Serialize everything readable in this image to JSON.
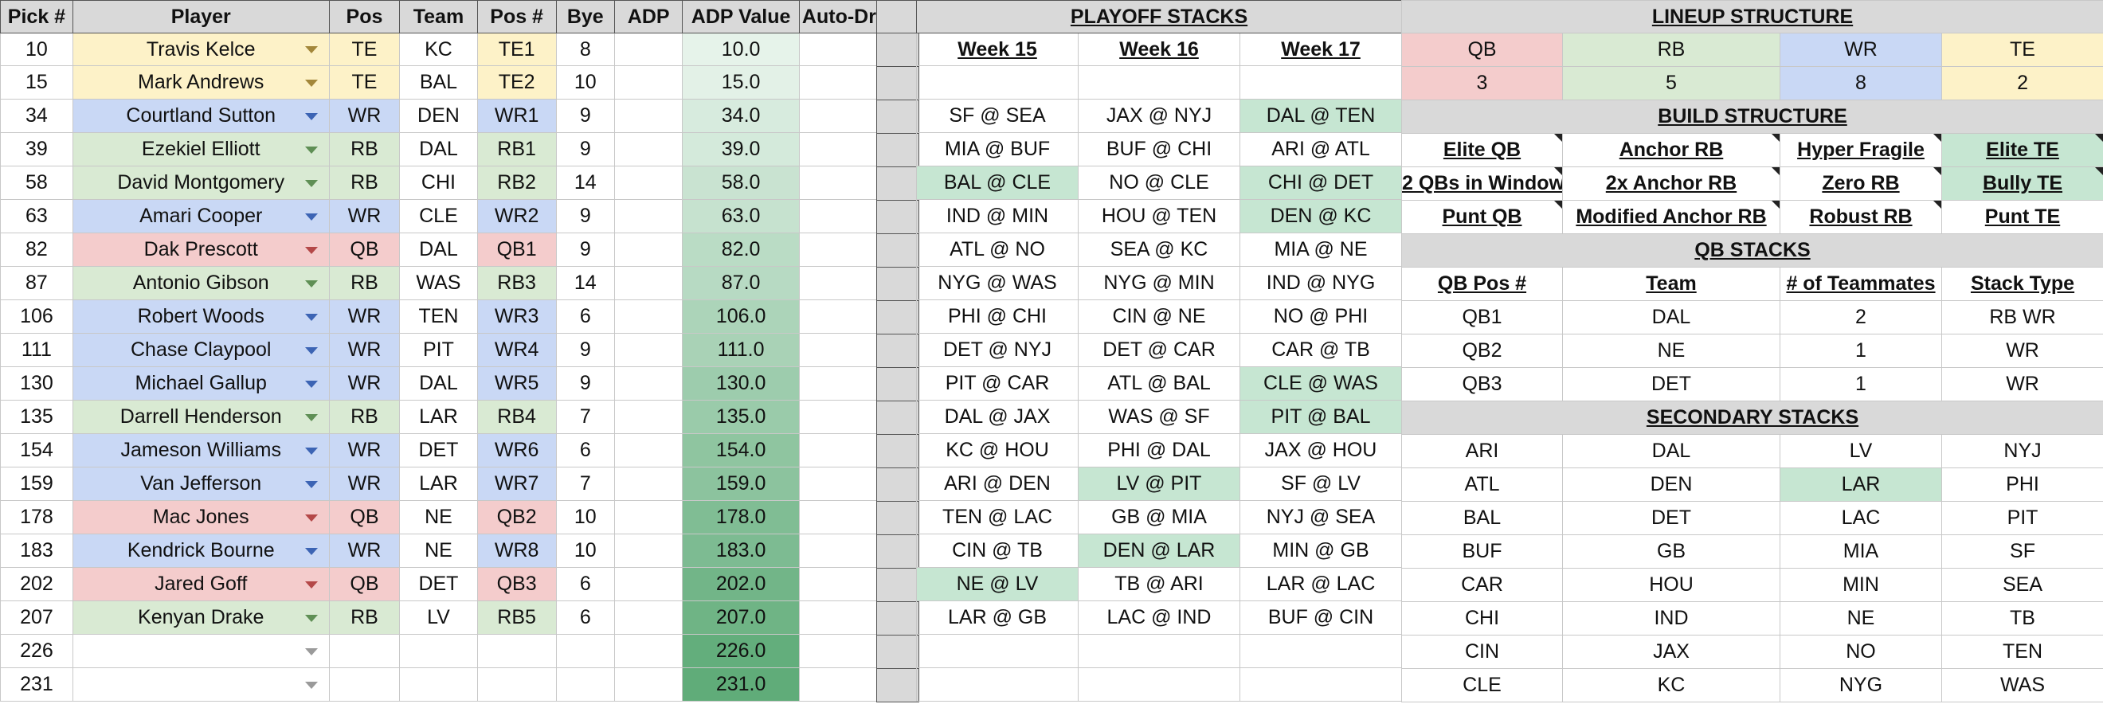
{
  "left_table": {
    "headers": [
      "Pick #",
      "Player",
      "Pos",
      "Team",
      "Pos #",
      "Bye",
      "ADP",
      "ADP Value",
      "Auto-Draft?"
    ],
    "rows": [
      {
        "pick": "10",
        "player": "Travis Kelce",
        "pos": "TE",
        "team": "KC",
        "posnum": "TE1",
        "bye": "8",
        "adp": "",
        "adpval": "10.0"
      },
      {
        "pick": "15",
        "player": "Mark Andrews",
        "pos": "TE",
        "team": "BAL",
        "posnum": "TE2",
        "bye": "10",
        "adp": "",
        "adpval": "15.0"
      },
      {
        "pick": "34",
        "player": "Courtland Sutton",
        "pos": "WR",
        "team": "DEN",
        "posnum": "WR1",
        "bye": "9",
        "adp": "",
        "adpval": "34.0"
      },
      {
        "pick": "39",
        "player": "Ezekiel Elliott",
        "pos": "RB",
        "team": "DAL",
        "posnum": "RB1",
        "bye": "9",
        "adp": "",
        "adpval": "39.0"
      },
      {
        "pick": "58",
        "player": "David Montgomery",
        "pos": "RB",
        "team": "CHI",
        "posnum": "RB2",
        "bye": "14",
        "adp": "",
        "adpval": "58.0"
      },
      {
        "pick": "63",
        "player": "Amari Cooper",
        "pos": "WR",
        "team": "CLE",
        "posnum": "WR2",
        "bye": "9",
        "adp": "",
        "adpval": "63.0"
      },
      {
        "pick": "82",
        "player": "Dak Prescott",
        "pos": "QB",
        "team": "DAL",
        "posnum": "QB1",
        "bye": "9",
        "adp": "",
        "adpval": "82.0"
      },
      {
        "pick": "87",
        "player": "Antonio Gibson",
        "pos": "RB",
        "team": "WAS",
        "posnum": "RB3",
        "bye": "14",
        "adp": "",
        "adpval": "87.0"
      },
      {
        "pick": "106",
        "player": "Robert Woods",
        "pos": "WR",
        "team": "TEN",
        "posnum": "WR3",
        "bye": "6",
        "adp": "",
        "adpval": "106.0"
      },
      {
        "pick": "111",
        "player": "Chase Claypool",
        "pos": "WR",
        "team": "PIT",
        "posnum": "WR4",
        "bye": "9",
        "adp": "",
        "adpval": "111.0"
      },
      {
        "pick": "130",
        "player": "Michael Gallup",
        "pos": "WR",
        "team": "DAL",
        "posnum": "WR5",
        "bye": "9",
        "adp": "",
        "adpval": "130.0"
      },
      {
        "pick": "135",
        "player": "Darrell Henderson",
        "pos": "RB",
        "team": "LAR",
        "posnum": "RB4",
        "bye": "7",
        "adp": "",
        "adpval": "135.0"
      },
      {
        "pick": "154",
        "player": "Jameson Williams",
        "pos": "WR",
        "team": "DET",
        "posnum": "WR6",
        "bye": "6",
        "adp": "",
        "adpval": "154.0"
      },
      {
        "pick": "159",
        "player": "Van Jefferson",
        "pos": "WR",
        "team": "LAR",
        "posnum": "WR7",
        "bye": "7",
        "adp": "",
        "adpval": "159.0"
      },
      {
        "pick": "178",
        "player": "Mac Jones",
        "pos": "QB",
        "team": "NE",
        "posnum": "QB2",
        "bye": "10",
        "adp": "",
        "adpval": "178.0"
      },
      {
        "pick": "183",
        "player": "Kendrick Bourne",
        "pos": "WR",
        "team": "NE",
        "posnum": "WR8",
        "bye": "10",
        "adp": "",
        "adpval": "183.0"
      },
      {
        "pick": "202",
        "player": "Jared Goff",
        "pos": "QB",
        "team": "DET",
        "posnum": "QB3",
        "bye": "6",
        "adp": "",
        "adpval": "202.0"
      },
      {
        "pick": "207",
        "player": "Kenyan Drake",
        "pos": "RB",
        "team": "LV",
        "posnum": "RB5",
        "bye": "6",
        "adp": "",
        "adpval": "207.0"
      },
      {
        "pick": "226",
        "player": "",
        "pos": "",
        "team": "",
        "posnum": "",
        "bye": "",
        "adp": "",
        "adpval": "226.0"
      },
      {
        "pick": "231",
        "player": "",
        "pos": "",
        "team": "",
        "posnum": "",
        "bye": "",
        "adp": "",
        "adpval": "231.0"
      }
    ]
  },
  "playoff": {
    "title": "PLAYOFF STACKS",
    "weeks": [
      "Week 15",
      "Week 16",
      "Week 17"
    ],
    "rows": [
      [
        "",
        "",
        ""
      ],
      [
        "SF @ SEA",
        "JAX @ NYJ",
        "DAL @ TEN"
      ],
      [
        "MIA @ BUF",
        "BUF @ CHI",
        "ARI @ ATL"
      ],
      [
        "BAL @ CLE",
        "NO @ CLE",
        "CHI @ DET"
      ],
      [
        "IND @ MIN",
        "HOU @ TEN",
        "DEN @ KC"
      ],
      [
        "ATL @ NO",
        "SEA @ KC",
        "MIA @ NE"
      ],
      [
        "NYG @ WAS",
        "NYG @ MIN",
        "IND @ NYG"
      ],
      [
        "PHI @ CHI",
        "CIN @ NE",
        "NO @ PHI"
      ],
      [
        "DET @ NYJ",
        "DET @ CAR",
        "CAR @ TB"
      ],
      [
        "PIT @ CAR",
        "ATL @ BAL",
        "CLE @ WAS"
      ],
      [
        "DAL @ JAX",
        "WAS @ SF",
        "PIT @ BAL"
      ],
      [
        "KC @ HOU",
        "PHI @ DAL",
        "JAX @ HOU"
      ],
      [
        "ARI @ DEN",
        "LV @ PIT",
        "SF @ LV"
      ],
      [
        "TEN @ LAC",
        "GB @ MIA",
        "NYJ @ SEA"
      ],
      [
        "CIN @ TB",
        "DEN @ LAR",
        "MIN @ GB"
      ],
      [
        "NE @ LV",
        "TB @ ARI",
        "LAR @ LAC"
      ],
      [
        "LAR @ GB",
        "LAC @ IND",
        "BUF @ CIN"
      ],
      [
        "",
        "",
        ""
      ],
      [
        "",
        "",
        ""
      ]
    ]
  },
  "lineup": {
    "title": "LINEUP STRUCTURE",
    "positions": [
      "QB",
      "RB",
      "WR",
      "TE"
    ],
    "counts": [
      "3",
      "5",
      "8",
      "2"
    ]
  },
  "build": {
    "title": "BUILD STRUCTURE",
    "rows": [
      [
        "Elite QB",
        "Anchor RB",
        "Hyper Fragile",
        "Elite TE"
      ],
      [
        "2 QBs in Window",
        "2x Anchor RB",
        "Zero RB",
        "Bully TE"
      ],
      [
        "Punt QB",
        "Modified Anchor RB",
        "Robust RB",
        "Punt TE"
      ]
    ]
  },
  "qb_stacks": {
    "title": "QB STACKS",
    "headers": [
      "QB Pos #",
      "Team",
      "# of Teammates",
      "Stack Type"
    ],
    "rows": [
      [
        "QB1",
        "DAL",
        "2",
        "RB  WR"
      ],
      [
        "QB2",
        "NE",
        "1",
        "WR"
      ],
      [
        "QB3",
        "DET",
        "1",
        "WR"
      ]
    ]
  },
  "secondary": {
    "title": "SECONDARY STACKS",
    "rows": [
      [
        "ARI",
        "DAL",
        "LV",
        "NYJ"
      ],
      [
        "ATL",
        "DEN",
        "LAR",
        "PHI"
      ],
      [
        "BAL",
        "DET",
        "LAC",
        "PIT"
      ],
      [
        "BUF",
        "GB",
        "MIA",
        "SF"
      ],
      [
        "CAR",
        "HOU",
        "MIN",
        "SEA"
      ],
      [
        "CHI",
        "IND",
        "NE",
        "TB"
      ],
      [
        "CIN",
        "JAX",
        "NO",
        "TEN"
      ],
      [
        "CLE",
        "KC",
        "NYG",
        "WAS"
      ]
    ]
  },
  "colors": {
    "te": "#fdf2c8",
    "wr": "#c9d8f5",
    "rb": "#d9ead3",
    "qb": "#f4cccc",
    "highlight": "#c6e6d2",
    "header": "#d9d9d9"
  }
}
